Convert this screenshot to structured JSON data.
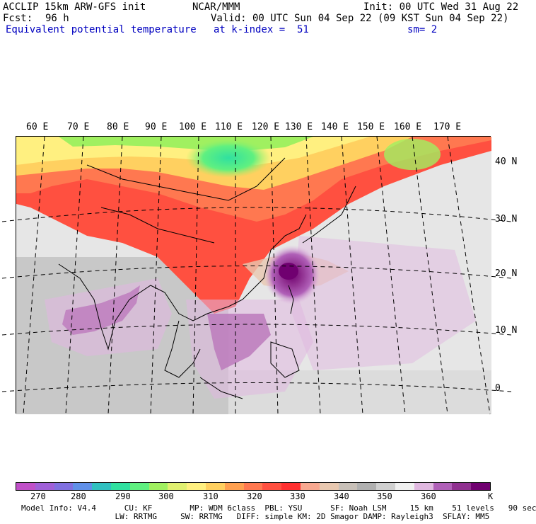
{
  "header": {
    "model": "ACCLIP 15km ARW-GFS init",
    "center": "NCAR/MMM",
    "init": "Init: 00 UTC Wed 31 Aug 22",
    "fcst_label": "Fcst:",
    "fcst_value": "96 h",
    "valid": "Valid: 00 UTC Sun 04 Sep 22 (09 KST Sun 04 Sep 22)",
    "field": "Equivalent potential temperature",
    "level": "at k-index =  51",
    "smoothing": "sm= 2"
  },
  "map": {
    "lon_labels": [
      "60 E",
      "70 E",
      "80 E",
      "90 E",
      "100 E",
      "110 E",
      "120 E",
      "130 E",
      "140 E",
      "150 E",
      "160 E",
      "170 E"
    ],
    "lat_labels": [
      "40 N",
      "30 N",
      "20 N",
      "10 N",
      "0"
    ]
  },
  "colorbar": {
    "colors": [
      "#c050c8",
      "#a060d8",
      "#8070e0",
      "#6090e8",
      "#30c0c0",
      "#30e0a0",
      "#60f080",
      "#a0f060",
      "#e0f070",
      "#fff080",
      "#ffd060",
      "#ffa050",
      "#ff7850",
      "#ff5040",
      "#ff3030",
      "#f8a890",
      "#e8c8b0",
      "#c8c0b8",
      "#b0b0b0",
      "#d0d0d0",
      "#f0f0f0",
      "#e0b8e0",
      "#b060b8",
      "#903090",
      "#700070"
    ],
    "tick_labels": [
      "270",
      "280",
      "290",
      "300",
      "310",
      "320",
      "330",
      "340",
      "350",
      "360"
    ],
    "unit": "K"
  },
  "model_info": {
    "line1": "Model Info: V4.4      CU: KF        MP: WDM 6class  PBL: YSU      SF: Noah LSM     15 km    51 levels   90 sec",
    "line2": "                    LW: RRTMG     SW: RRTMG   DIFF: simple KM: 2D Smagor DAMP: Rayleigh3  SFLAY: MM5"
  }
}
